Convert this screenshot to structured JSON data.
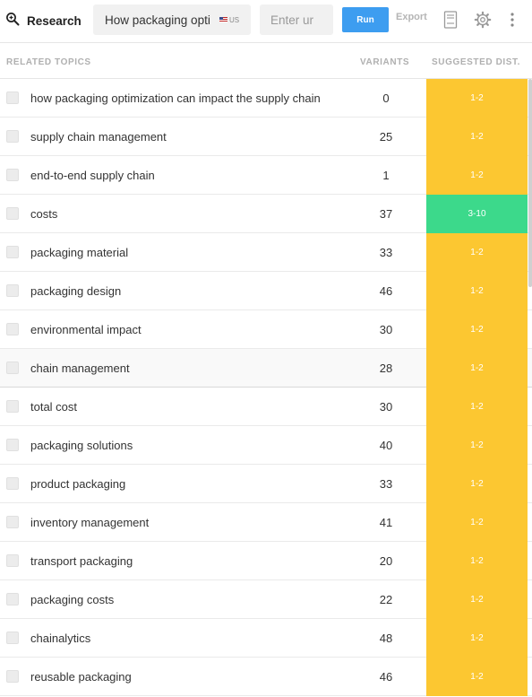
{
  "toolbar": {
    "brand_label": "Research",
    "query_value": "How packaging opti",
    "country_code": "US",
    "url_placeholder": "Enter ur",
    "run_label": "Run",
    "export_label": "Export"
  },
  "icons": {
    "brand": "search-zoom-icon",
    "report": "document-icon",
    "settings": "gear-icon",
    "more": "more-vertical-icon"
  },
  "colors": {
    "run_button": "#3d9df0",
    "dist_default": "#fcc731",
    "dist_highlight": "#3cd98b"
  },
  "table": {
    "headers": {
      "topic": "RELATED TOPICS",
      "variants": "VARIANTS",
      "dist": "SUGGESTED DIST."
    },
    "rows": [
      {
        "topic": "how packaging optimization can impact the supply chain",
        "variants": "0",
        "dist": "1-2",
        "dist_color": "#fcc731"
      },
      {
        "topic": "supply chain management",
        "variants": "25",
        "dist": "1-2",
        "dist_color": "#fcc731"
      },
      {
        "topic": "end-to-end supply chain",
        "variants": "1",
        "dist": "1-2",
        "dist_color": "#fcc731"
      },
      {
        "topic": "costs",
        "variants": "37",
        "dist": "3-10",
        "dist_color": "#3cd98b"
      },
      {
        "topic": "packaging material",
        "variants": "33",
        "dist": "1-2",
        "dist_color": "#fcc731"
      },
      {
        "topic": "packaging design",
        "variants": "46",
        "dist": "1-2",
        "dist_color": "#fcc731"
      },
      {
        "topic": "environmental impact",
        "variants": "30",
        "dist": "1-2",
        "dist_color": "#fcc731"
      },
      {
        "topic": "chain management",
        "variants": "28",
        "dist": "1-2",
        "dist_color": "#fcc731",
        "highlight": true
      },
      {
        "topic": "total cost",
        "variants": "30",
        "dist": "1-2",
        "dist_color": "#fcc731"
      },
      {
        "topic": "packaging solutions",
        "variants": "40",
        "dist": "1-2",
        "dist_color": "#fcc731"
      },
      {
        "topic": "product packaging",
        "variants": "33",
        "dist": "1-2",
        "dist_color": "#fcc731"
      },
      {
        "topic": "inventory management",
        "variants": "41",
        "dist": "1-2",
        "dist_color": "#fcc731"
      },
      {
        "topic": "transport packaging",
        "variants": "20",
        "dist": "1-2",
        "dist_color": "#fcc731"
      },
      {
        "topic": "packaging costs",
        "variants": "22",
        "dist": "1-2",
        "dist_color": "#fcc731"
      },
      {
        "topic": "chainalytics",
        "variants": "48",
        "dist": "1-2",
        "dist_color": "#fcc731"
      },
      {
        "topic": "reusable packaging",
        "variants": "46",
        "dist": "1-2",
        "dist_color": "#fcc731"
      }
    ]
  }
}
